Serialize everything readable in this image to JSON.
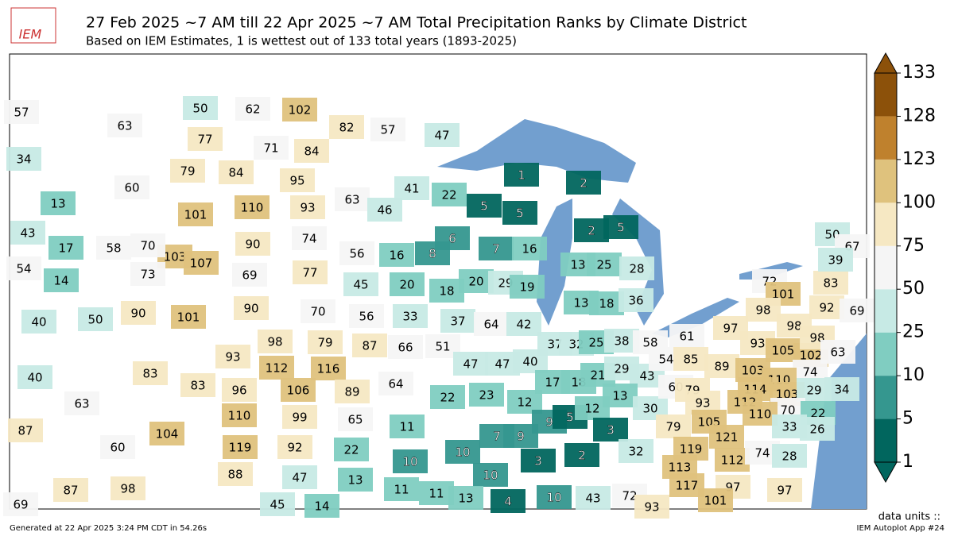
{
  "header": {
    "logo": "IEM",
    "title": "27 Feb 2025 ~7 AM till 22 Apr 2025 ~7 AM Total Precipitation Ranks by Climate District",
    "subtitle": "Based on IEM Estimates, 1 is wettest out of 133 total years (1893-2025)"
  },
  "districts": [
    57,
    63,
    34,
    60,
    13,
    50,
    62,
    102,
    77,
    71,
    84,
    79,
    84,
    95,
    82,
    57,
    47,
    63,
    41,
    46,
    56,
    16,
    8,
    22,
    5,
    5,
    6,
    7,
    16,
    20,
    29,
    19,
    18,
    1,
    2,
    2,
    5,
    13,
    25,
    28,
    13,
    18,
    36,
    101,
    110,
    93,
    90,
    74,
    103,
    107,
    69,
    77,
    43,
    17,
    58,
    70,
    54,
    14,
    73,
    40,
    50,
    90,
    101,
    90,
    70,
    98,
    79,
    93,
    112,
    116,
    45,
    20,
    56,
    33,
    37,
    87,
    66,
    51,
    64,
    42,
    47,
    47,
    40,
    22,
    23,
    12,
    7,
    9,
    37,
    32,
    25,
    17,
    18,
    21,
    9,
    5,
    12,
    38,
    58,
    29,
    43,
    54,
    13,
    30,
    61,
    85,
    60,
    3,
    2,
    3,
    32,
    40,
    63,
    83,
    83,
    104,
    87,
    60,
    96,
    106,
    89,
    110,
    99,
    65,
    119,
    92,
    22,
    64,
    11,
    10,
    10,
    10,
    47,
    13,
    88,
    14,
    45,
    69,
    87,
    98,
    11,
    11,
    13,
    4,
    10,
    43,
    72,
    93,
    79,
    93,
    105,
    79,
    121,
    119,
    113,
    112,
    117,
    97,
    101,
    74,
    28,
    72,
    101,
    98,
    83,
    92,
    69,
    50,
    67,
    39,
    97,
    98,
    93,
    105,
    102,
    98,
    63,
    89,
    103,
    74,
    110,
    114,
    103,
    29,
    34,
    112,
    70,
    22,
    110,
    33,
    26,
    97
  ],
  "colorbar": {
    "ticks": [
      1,
      5,
      10,
      25,
      50,
      75,
      100,
      123,
      128,
      133
    ],
    "colors": [
      "#01665e",
      "#35978f",
      "#80cdc1",
      "#c7eae5",
      "#f5f5f5",
      "#f6e8c3",
      "#dfc27d",
      "#bf812d",
      "#8c510a"
    ],
    "units": "data units ::"
  },
  "footer": {
    "generated": "Generated at 22 Apr 2025 3:24 PM CDT in 54.26s",
    "app": "IEM Autoplot App #24"
  }
}
